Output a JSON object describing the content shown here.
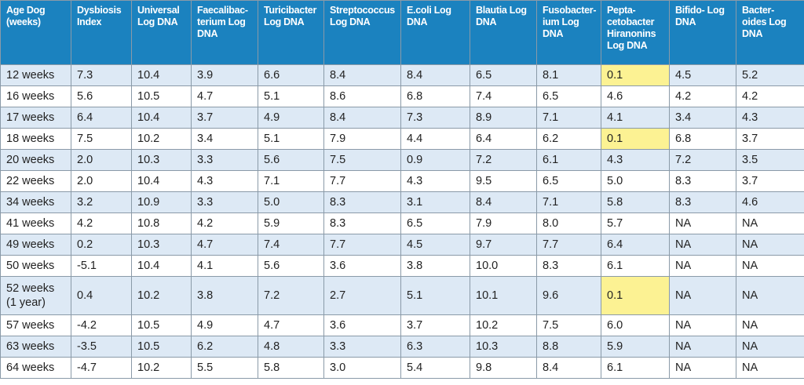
{
  "table": {
    "header": [
      "Age Dog\n(weeks)",
      "Dysbiosis\nIndex",
      "Universal\nLog DNA",
      "Faecalibac-\nterium Log\nDNA",
      "Turicibacter\nLog DNA",
      "Streptococcus\nLog DNA",
      "E.coli Log\nDNA",
      "Blautia Log\nDNA",
      "Fusobacter-\nium Log\nDNA",
      "Pepta-\ncetobacter\nHiranonins\nLog DNA",
      "Bifido- Log\nDNA",
      "Bacter-\noides Log\nDNA"
    ],
    "rows": [
      [
        "12 weeks",
        "7.3",
        "10.4",
        "3.9",
        "6.6",
        "8.4",
        "8.4",
        "6.5",
        "8.1",
        "0.1",
        "4.5",
        "5.2"
      ],
      [
        "16 weeks",
        "5.6",
        "10.5",
        "4.7",
        "5.1",
        "8.6",
        "6.8",
        "7.4",
        "6.5",
        "4.6",
        "4.2",
        "4.2"
      ],
      [
        "17 weeks",
        "6.4",
        "10.4",
        "3.7",
        "4.9",
        "8.4",
        "7.3",
        "8.9",
        "7.1",
        "4.1",
        "3.4",
        "4.3"
      ],
      [
        "18 weeks",
        "7.5",
        "10.2",
        "3.4",
        "5.1",
        "7.9",
        "4.4",
        "6.4",
        "6.2",
        "0.1",
        "6.8",
        "3.7"
      ],
      [
        "20 weeks",
        "2.0",
        "10.3",
        "3.3",
        "5.6",
        "7.5",
        "0.9",
        "7.2",
        "6.1",
        "4.3",
        "7.2",
        "3.5"
      ],
      [
        "22 weeks",
        "2.0",
        "10.4",
        "4.3",
        "7.1",
        "7.7",
        "4.3",
        "9.5",
        "6.5",
        "5.0",
        "8.3",
        "3.7"
      ],
      [
        "34 weeks",
        "3.2",
        "10.9",
        "3.3",
        "5.0",
        "8.3",
        "3.1",
        "8.4",
        "7.1",
        "5.8",
        "8.3",
        "4.6"
      ],
      [
        "41 weeks",
        "4.2",
        "10.8",
        "4.2",
        "5.9",
        "8.3",
        "6.5",
        "7.9",
        "8.0",
        "5.7",
        "NA",
        "NA"
      ],
      [
        "49 weeks",
        "0.2",
        "10.3",
        "4.7",
        "7.4",
        "7.7",
        "4.5",
        "9.7",
        "7.7",
        "6.4",
        "NA",
        "NA"
      ],
      [
        "50 weeks",
        "-5.1",
        "10.4",
        "4.1",
        "5.6",
        "3.6",
        "3.8",
        "10.0",
        "8.3",
        "6.1",
        "NA",
        "NA"
      ],
      [
        "52  weeks\n(1 year)",
        "0.4",
        "10.2",
        "3.8",
        "7.2",
        "2.7",
        "5.1",
        "10.1",
        "9.6",
        "0.1",
        "NA",
        "NA"
      ],
      [
        "57 weeks",
        "-4.2",
        "10.5",
        "4.9",
        "4.7",
        "3.6",
        "3.7",
        "10.2",
        "7.5",
        "6.0",
        "NA",
        "NA"
      ],
      [
        "63 weeks",
        "-3.5",
        "10.5",
        "6.2",
        "4.8",
        "3.3",
        "6.3",
        "10.3",
        "8.8",
        "5.9",
        "NA",
        "NA"
      ],
      [
        "64 weeks",
        "-4.7",
        "10.2",
        "5.5",
        "5.8",
        "3.0",
        "5.4",
        "9.8",
        "8.4",
        "6.1",
        "NA",
        "NA"
      ]
    ]
  }
}
